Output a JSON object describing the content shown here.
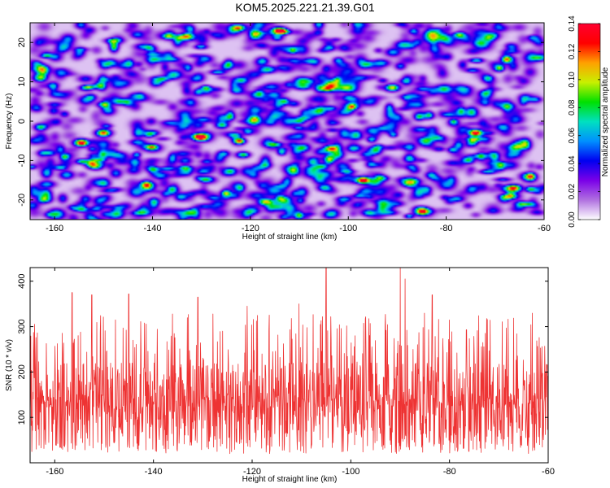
{
  "title": "KOM5.2025.221.21.39.G01",
  "colors": {
    "snr_line": "#ee3333",
    "frame": "#000000",
    "background": "#ffffff"
  },
  "chart_data": [
    {
      "type": "heatmap",
      "name": "spectrogram",
      "title": "",
      "xlabel": "Height of straight line (km)",
      "ylabel": "Frequency (Hz)",
      "xlim": [
        -165,
        -60
      ],
      "ylim": [
        -25,
        25
      ],
      "x_ticks": [
        -160,
        -140,
        -120,
        -100,
        -80,
        -60
      ],
      "y_ticks": [
        -20,
        -10,
        0,
        10,
        20
      ],
      "colorbar": {
        "label": "Normalized spectral amplitude",
        "range": [
          0,
          0.14
        ],
        "ticks": [
          "0.00",
          "0.02",
          "0.04",
          "0.06",
          "0.08",
          "0.10",
          "0.12",
          "0.14"
        ],
        "colormap": [
          "#ffffff",
          "#b070e0",
          "#7a00e8",
          "#0000f0",
          "#0090ff",
          "#00e0c0",
          "#00e000",
          "#c8f000",
          "#ffa000",
          "#ff0000",
          "#ff0030"
        ]
      },
      "hot_spots": [
        {
          "x": -154.5,
          "y": -5.5,
          "v": 0.14
        },
        {
          "x": -150.0,
          "y": -3.0,
          "v": 0.12
        },
        {
          "x": -130.5,
          "y": -4.0,
          "v": 0.13
        },
        {
          "x": -103.5,
          "y": -7.0,
          "v": 0.11
        },
        {
          "x": -97.0,
          "y": -15.0,
          "v": 0.14
        },
        {
          "x": -74.0,
          "y": -3.0,
          "v": 0.14
        },
        {
          "x": -91.0,
          "y": 8.5,
          "v": 0.1
        },
        {
          "x": -133.0,
          "y": 21.5,
          "v": 0.1
        },
        {
          "x": -114.0,
          "y": 23.0,
          "v": 0.1
        },
        {
          "x": -85.0,
          "y": -23.0,
          "v": 0.11
        },
        {
          "x": -117.0,
          "y": -20.5,
          "v": 0.09
        },
        {
          "x": -66.0,
          "y": -17.0,
          "v": 0.09
        }
      ]
    },
    {
      "type": "line",
      "name": "snr",
      "title": "",
      "xlabel": "Height of straight line (km)",
      "ylabel": "SNR (10 * v/v)",
      "xlim": [
        -165,
        -60
      ],
      "ylim": [
        0,
        430
      ],
      "x_ticks": [
        -160,
        -140,
        -120,
        -100,
        -80,
        -60
      ],
      "y_ticks": [
        100,
        200,
        300,
        400
      ],
      "series": [
        {
          "name": "SNR",
          "color": "#ee3333",
          "samples": 1500,
          "baseline": 120,
          "min": 5,
          "max": 430,
          "peaks": [
            {
              "x": -105.0,
              "y": 430
            },
            {
              "x": -90.0,
              "y": 430
            },
            {
              "x": -89.0,
              "y": 405
            },
            {
              "x": -156.5,
              "y": 375
            },
            {
              "x": -152.5,
              "y": 370
            },
            {
              "x": -145.0,
              "y": 372
            },
            {
              "x": -110.5,
              "y": 350
            },
            {
              "x": -83.5,
              "y": 370
            },
            {
              "x": -131.0,
              "y": 365
            },
            {
              "x": -121.0,
              "y": 345
            }
          ]
        }
      ]
    }
  ]
}
